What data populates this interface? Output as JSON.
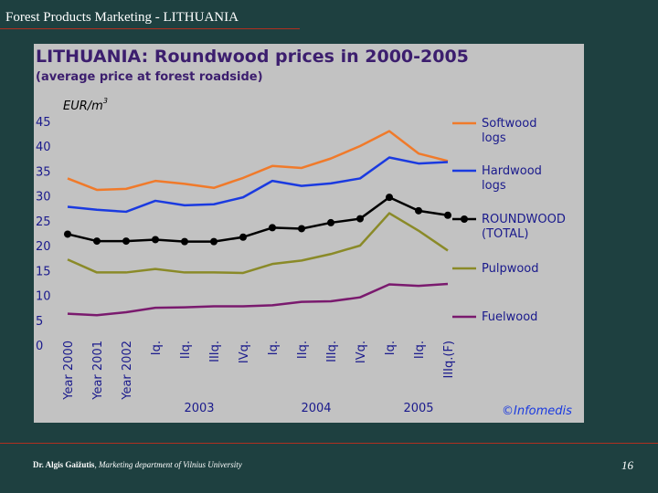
{
  "slide": {
    "title": "Forest Products Marketing - LITHUANIA",
    "footer_author_name": "Dr. Algis Gaižutis",
    "footer_author_rest": ", Marketing department of Vilnius University",
    "page_number": "16"
  },
  "colors": {
    "background": "#1e4040",
    "rule": "#b03020",
    "panel": "#c2c2c2",
    "title": "#3c1e6e",
    "text": "#1a1a8c"
  },
  "chart_data": {
    "type": "line",
    "title": "LITHUANIA: Roundwood prices in 2000-2005",
    "subtitle": "(average price at forest roadside)",
    "ylabel": "EUR/m3",
    "ylim": [
      0,
      45
    ],
    "yticks": [
      0,
      5,
      10,
      15,
      20,
      25,
      30,
      35,
      40,
      45
    ],
    "categories": [
      "Year 2000",
      "Year 2001",
      "Year 2002",
      "Iq.",
      "IIq.",
      "IIIq.",
      "IVq.",
      "Iq.",
      "IIq.",
      "IIIq.",
      "IVq.",
      "Iq.",
      "IIq.",
      "IIIq.(F)"
    ],
    "year_groups": [
      {
        "label": "2003",
        "from": 3,
        "to": 6
      },
      {
        "label": "2004",
        "from": 7,
        "to": 10
      },
      {
        "label": "2005",
        "from": 11,
        "to": 13
      }
    ],
    "series": [
      {
        "name": "Softwood logs",
        "color": "#f07a2a",
        "marker": false,
        "values": [
          33.5,
          31.2,
          31.4,
          33,
          32.4,
          31.6,
          33.6,
          36.0,
          35.6,
          37.5,
          40.0,
          43.0,
          38.5,
          37.0
        ]
      },
      {
        "name": "Hardwood logs",
        "color": "#1a3ae0",
        "marker": false,
        "values": [
          27.8,
          27.2,
          26.8,
          29.0,
          28.1,
          28.3,
          29.7,
          33.0,
          32.0,
          32.5,
          33.5,
          37.7,
          36.5,
          36.8
        ]
      },
      {
        "name": "ROUNDWOOD (TOTAL)",
        "color": "#000000",
        "marker": true,
        "values": [
          22.3,
          20.9,
          20.9,
          21.2,
          20.8,
          20.8,
          21.7,
          23.6,
          23.4,
          24.6,
          25.4,
          29.7,
          27.0,
          26.1
        ]
      },
      {
        "name": "Pulpwood",
        "color": "#8a8a28",
        "marker": false,
        "values": [
          17.2,
          14.6,
          14.6,
          15.3,
          14.6,
          14.6,
          14.5,
          16.3,
          17.0,
          18.3,
          20.0,
          26.5,
          23.0,
          19.0
        ]
      },
      {
        "name": "Fuelwood",
        "color": "#7a1a6e",
        "marker": false,
        "values": [
          6.3,
          6.0,
          6.6,
          7.5,
          7.6,
          7.8,
          7.8,
          8.0,
          8.7,
          8.8,
          9.6,
          12.2,
          11.9,
          12.3
        ]
      }
    ],
    "legend_position": "right",
    "watermark": "Infomedis"
  }
}
